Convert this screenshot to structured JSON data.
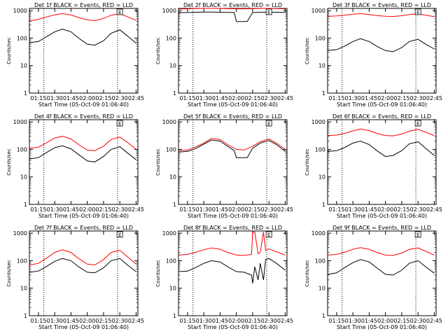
{
  "chart_data": [
    {
      "type": "line",
      "title": "Det 1f BLACK = Events, RED = LLD",
      "xlabel": "Start Time (05-Oct-09 01:06:40)",
      "ylabel": "Counts/sec",
      "yscale": "log",
      "ylim": [
        1,
        1200
      ],
      "xlim": [
        "01:06:40",
        "02:46:40"
      ],
      "xtick_labels": [
        "01:15",
        "01:30",
        "01:45",
        "02:00",
        "02:15",
        "02:30",
        "02:45"
      ],
      "ytick_labels": [
        "1",
        "10",
        "100",
        "1000"
      ],
      "marker_lines": [
        "01:20",
        "02:28"
      ],
      "box_label": "E",
      "box_time": "02:30",
      "series": [
        {
          "color": "#ff0000",
          "x": [
            "01:07",
            "01:15",
            "01:22",
            "01:30",
            "01:37",
            "01:45",
            "01:52",
            "02:00",
            "02:07",
            "02:15",
            "02:22",
            "02:30",
            "02:37",
            "02:45"
          ],
          "y": [
            420,
            480,
            580,
            700,
            780,
            690,
            560,
            460,
            430,
            520,
            680,
            760,
            600,
            440
          ]
        },
        {
          "color": "#000000",
          "x": [
            "01:07",
            "01:15",
            "01:22",
            "01:30",
            "01:37",
            "01:45",
            "01:52",
            "02:00",
            "02:07",
            "02:15",
            "02:22",
            "02:30",
            "02:37",
            "02:45"
          ],
          "y": [
            68,
            75,
            110,
            170,
            210,
            170,
            100,
            60,
            55,
            80,
            150,
            200,
            120,
            65
          ]
        }
      ]
    },
    {
      "type": "line",
      "title": "Det 2f BLACK = Events, RED = LLD",
      "xlabel": "Start Time (05-Oct-09 01:06:40)",
      "ylabel": "Counts/sec",
      "yscale": "log",
      "ylim": [
        1,
        1200
      ],
      "xlim": [
        "01:06:40",
        "02:46:40"
      ],
      "xtick_labels": [
        "01:15",
        "01:30",
        "01:45",
        "02:00",
        "02:15",
        "02:30",
        "02:45"
      ],
      "ytick_labels": [
        "1",
        "10",
        "100",
        "1000"
      ],
      "marker_lines": [
        "01:20",
        "02:28"
      ],
      "box_label": "E",
      "box_time": "02:30",
      "series": [
        {
          "color": "#ff0000",
          "x": [
            "01:07",
            "01:15",
            "01:22",
            "01:30",
            "01:37",
            "01:45",
            "01:52",
            "02:00",
            "02:07",
            "02:15",
            "02:22",
            "02:30",
            "02:37",
            "02:45"
          ],
          "y": [
            1150,
            1160,
            1180,
            1200,
            1200,
            1190,
            1170,
            1160,
            1160,
            1170,
            1190,
            1200,
            1180,
            1160
          ]
        },
        {
          "color": "#000000",
          "x": [
            "01:07",
            "01:15",
            "01:22",
            "01:30",
            "01:37",
            "01:45",
            "01:52",
            "01:58",
            "02:00",
            "02:07",
            "02:10",
            "02:15",
            "02:22",
            "02:30",
            "02:37",
            "02:45"
          ],
          "y": [
            840,
            850,
            870,
            880,
            880,
            870,
            860,
            860,
            400,
            400,
            400,
            850,
            870,
            880,
            870,
            850
          ]
        }
      ]
    },
    {
      "type": "line",
      "title": "Det 3f BLACK = Events, RED = LLD",
      "xlabel": "Start Time (05-Oct-09 01:06:40)",
      "ylabel": "Counts/sec",
      "yscale": "log",
      "ylim": [
        1,
        1200
      ],
      "xlim": [
        "01:06:40",
        "02:46:40"
      ],
      "xtick_labels": [
        "01:15",
        "01:30",
        "01:45",
        "02:00",
        "02:15",
        "02:30",
        "02:45"
      ],
      "ytick_labels": [
        "1",
        "10",
        "100",
        "1000"
      ],
      "marker_lines": [
        "01:20",
        "02:28"
      ],
      "box_label": "E",
      "box_time": "02:30",
      "series": [
        {
          "color": "#ff0000",
          "x": [
            "01:07",
            "01:15",
            "01:22",
            "01:30",
            "01:37",
            "01:45",
            "01:52",
            "02:00",
            "02:07",
            "02:15",
            "02:22",
            "02:30",
            "02:37",
            "02:45"
          ],
          "y": [
            620,
            640,
            680,
            740,
            780,
            720,
            660,
            620,
            610,
            650,
            720,
            760,
            680,
            600
          ]
        },
        {
          "color": "#000000",
          "x": [
            "01:07",
            "01:15",
            "01:22",
            "01:30",
            "01:37",
            "01:45",
            "01:52",
            "02:00",
            "02:07",
            "02:15",
            "02:22",
            "02:30",
            "02:37",
            "02:45"
          ],
          "y": [
            35,
            38,
            50,
            75,
            95,
            75,
            50,
            35,
            32,
            45,
            75,
            90,
            60,
            40
          ]
        }
      ]
    },
    {
      "type": "line",
      "title": "Det 4f BLACK = Events, RED = LLD",
      "xlabel": "Start Time (05-Oct-09 01:06:40)",
      "ylabel": "Counts/sec",
      "yscale": "log",
      "ylim": [
        1,
        1200
      ],
      "xlim": [
        "01:06:40",
        "02:46:40"
      ],
      "xtick_labels": [
        "01:15",
        "01:30",
        "01:45",
        "02:00",
        "02:15",
        "02:30",
        "02:45"
      ],
      "ytick_labels": [
        "1",
        "10",
        "100",
        "1000"
      ],
      "marker_lines": [
        "01:20",
        "02:28"
      ],
      "box_label": "E",
      "box_time": "02:30",
      "series": [
        {
          "color": "#ff0000",
          "x": [
            "01:07",
            "01:15",
            "01:22",
            "01:30",
            "01:37",
            "01:45",
            "01:52",
            "02:00",
            "02:07",
            "02:15",
            "02:22",
            "02:30",
            "02:37",
            "02:45"
          ],
          "y": [
            110,
            120,
            170,
            260,
            300,
            240,
            150,
            95,
            90,
            130,
            230,
            280,
            180,
            100
          ]
        },
        {
          "color": "#000000",
          "x": [
            "01:07",
            "01:15",
            "01:22",
            "01:30",
            "01:37",
            "01:45",
            "01:52",
            "02:00",
            "02:07",
            "02:15",
            "02:22",
            "02:30",
            "02:37",
            "02:45"
          ],
          "y": [
            45,
            50,
            75,
            115,
            135,
            105,
            65,
            38,
            35,
            55,
            100,
            125,
            75,
            42
          ]
        }
      ]
    },
    {
      "type": "line",
      "title": "Det 5f BLACK = Events, RED = LLD",
      "xlabel": "Start Time (05-Oct-09 01:06:40)",
      "ylabel": "Counts/sec",
      "yscale": "log",
      "ylim": [
        1,
        1200
      ],
      "xlim": [
        "01:06:40",
        "02:46:40"
      ],
      "xtick_labels": [
        "01:15",
        "01:30",
        "01:45",
        "02:00",
        "02:15",
        "02:30",
        "02:45"
      ],
      "ytick_labels": [
        "1",
        "10",
        "100",
        "1000"
      ],
      "marker_lines": [
        "01:20",
        "02:28"
      ],
      "box_label": "E",
      "box_time": "02:30",
      "series": [
        {
          "color": "#ff0000",
          "x": [
            "01:07",
            "01:15",
            "01:22",
            "01:30",
            "01:37",
            "01:45",
            "01:52",
            "02:00",
            "02:07",
            "02:15",
            "02:22",
            "02:30",
            "02:37",
            "02:45"
          ],
          "y": [
            90,
            95,
            120,
            170,
            250,
            230,
            150,
            100,
            95,
            130,
            190,
            240,
            170,
            100
          ]
        },
        {
          "color": "#000000",
          "x": [
            "01:07",
            "01:15",
            "01:22",
            "01:30",
            "01:37",
            "01:45",
            "01:52",
            "01:58",
            "02:00",
            "02:07",
            "02:10",
            "02:15",
            "02:22",
            "02:30",
            "02:37",
            "02:45"
          ],
          "y": [
            80,
            85,
            105,
            155,
            220,
            200,
            130,
            90,
            50,
            50,
            50,
            110,
            170,
            210,
            150,
            85
          ]
        }
      ]
    },
    {
      "type": "line",
      "title": "Det 6f BLACK = Events, RED = LLD",
      "xlabel": "Start Time (05-Oct-09 01:06:40)",
      "ylabel": "Counts/sec",
      "yscale": "log",
      "ylim": [
        1,
        1200
      ],
      "xlim": [
        "01:06:40",
        "02:46:40"
      ],
      "xtick_labels": [
        "01:15",
        "01:30",
        "01:45",
        "02:00",
        "02:15",
        "02:30",
        "02:45"
      ],
      "ytick_labels": [
        "1",
        "10",
        "100",
        "1000"
      ],
      "marker_lines": [
        "01:20",
        "02:28"
      ],
      "box_label": "E",
      "box_time": "02:30",
      "series": [
        {
          "color": "#ff0000",
          "x": [
            "01:07",
            "01:15",
            "01:22",
            "01:30",
            "01:37",
            "01:45",
            "01:52",
            "02:00",
            "02:07",
            "02:15",
            "02:22",
            "02:30",
            "02:37",
            "02:45"
          ],
          "y": [
            320,
            330,
            380,
            470,
            550,
            480,
            380,
            320,
            310,
            360,
            460,
            540,
            420,
            320
          ]
        },
        {
          "color": "#000000",
          "x": [
            "01:07",
            "01:15",
            "01:22",
            "01:30",
            "01:37",
            "01:45",
            "01:52",
            "02:00",
            "02:07",
            "02:15",
            "02:22",
            "02:30",
            "02:37",
            "02:45"
          ],
          "y": [
            85,
            90,
            115,
            170,
            200,
            150,
            90,
            55,
            60,
            90,
            160,
            190,
            110,
            60
          ]
        }
      ]
    },
    {
      "type": "line",
      "title": "Det 7f BLACK = Events, RED = LLD",
      "xlabel": "Start Time (05-Oct-09 01:06:40)",
      "ylabel": "Counts/sec",
      "yscale": "log",
      "ylim": [
        1,
        1200
      ],
      "xlim": [
        "01:06:40",
        "02:46:40"
      ],
      "xtick_labels": [
        "01:15",
        "01:30",
        "01:45",
        "02:00",
        "02:15",
        "02:30",
        "02:45"
      ],
      "ytick_labels": [
        "1",
        "10",
        "100",
        "1000"
      ],
      "marker_lines": [
        "01:20",
        "02:28"
      ],
      "box_label": "E",
      "box_time": "02:30",
      "series": [
        {
          "color": "#ff0000",
          "x": [
            "01:07",
            "01:15",
            "01:22",
            "01:30",
            "01:37",
            "01:45",
            "01:52",
            "02:00",
            "02:07",
            "02:15",
            "02:22",
            "02:30",
            "02:37",
            "02:45"
          ],
          "y": [
            70,
            80,
            120,
            200,
            250,
            200,
            120,
            75,
            70,
            110,
            200,
            240,
            140,
            75
          ]
        },
        {
          "color": "#000000",
          "x": [
            "01:07",
            "01:15",
            "01:22",
            "01:30",
            "01:37",
            "01:45",
            "01:52",
            "02:00",
            "02:07",
            "02:15",
            "02:22",
            "02:30",
            "02:37",
            "02:45"
          ],
          "y": [
            38,
            42,
            60,
            95,
            120,
            100,
            60,
            38,
            36,
            55,
            100,
            120,
            70,
            40
          ]
        }
      ]
    },
    {
      "type": "line",
      "title": "Det 8f BLACK = Events, RED = LLD",
      "xlabel": "Start Time (05-Oct-09 01:06:40)",
      "ylabel": "Counts/sec",
      "yscale": "log",
      "ylim": [
        1,
        1200
      ],
      "xlim": [
        "01:06:40",
        "02:46:40"
      ],
      "xtick_labels": [
        "01:15",
        "01:30",
        "01:45",
        "02:00",
        "02:15",
        "02:30",
        "02:45"
      ],
      "ytick_labels": [
        "1",
        "10",
        "100",
        "1000"
      ],
      "marker_lines": [
        "01:20",
        "02:28"
      ],
      "box_label": "E",
      "box_time": "02:30",
      "series": [
        {
          "color": "#ff0000",
          "x": [
            "01:07",
            "01:15",
            "01:22",
            "01:30",
            "01:37",
            "01:45",
            "01:52",
            "02:00",
            "02:07",
            "02:14",
            "02:15",
            "02:17",
            "02:20",
            "02:22",
            "02:25",
            "02:27",
            "02:30",
            "02:37",
            "02:45"
          ],
          "y": [
            160,
            170,
            200,
            250,
            290,
            260,
            200,
            160,
            155,
            170,
            1100,
            1100,
            180,
            200,
            1100,
            230,
            270,
            210,
            160
          ]
        },
        {
          "color": "#000000",
          "x": [
            "01:07",
            "01:15",
            "01:22",
            "01:30",
            "01:37",
            "01:45",
            "01:52",
            "02:00",
            "02:07",
            "02:14",
            "02:15",
            "02:17",
            "02:20",
            "02:22",
            "02:25",
            "02:27",
            "02:30",
            "02:37",
            "02:45"
          ],
          "y": [
            40,
            42,
            55,
            80,
            100,
            90,
            60,
            40,
            38,
            30,
            15,
            60,
            20,
            80,
            20,
            110,
            120,
            80,
            45
          ]
        }
      ]
    },
    {
      "type": "line",
      "title": "Det 9f BLACK = Events, RED = LLD",
      "xlabel": "Start Time (05-Oct-09 01:06:40)",
      "ylabel": "Counts/sec",
      "yscale": "log",
      "ylim": [
        1,
        1200
      ],
      "xlim": [
        "01:06:40",
        "02:46:40"
      ],
      "xtick_labels": [
        "01:15",
        "01:30",
        "01:45",
        "02:00",
        "02:15",
        "02:30",
        "02:45"
      ],
      "ytick_labels": [
        "1",
        "10",
        "100",
        "1000"
      ],
      "marker_lines": [
        "01:20",
        "02:28"
      ],
      "box_label": "E",
      "box_time": "02:30",
      "series": [
        {
          "color": "#ff0000",
          "x": [
            "01:07",
            "01:15",
            "01:22",
            "01:30",
            "01:37",
            "01:45",
            "01:52",
            "02:00",
            "02:07",
            "02:15",
            "02:22",
            "02:30",
            "02:37",
            "02:45"
          ],
          "y": [
            160,
            170,
            200,
            260,
            300,
            260,
            200,
            160,
            155,
            190,
            260,
            290,
            220,
            160
          ]
        },
        {
          "color": "#000000",
          "x": [
            "01:07",
            "01:15",
            "01:22",
            "01:30",
            "01:37",
            "01:45",
            "01:52",
            "02:00",
            "02:07",
            "02:15",
            "02:22",
            "02:30",
            "02:37",
            "02:45"
          ],
          "y": [
            32,
            36,
            55,
            85,
            110,
            90,
            55,
            32,
            30,
            45,
            80,
            100,
            60,
            35
          ]
        }
      ]
    }
  ]
}
